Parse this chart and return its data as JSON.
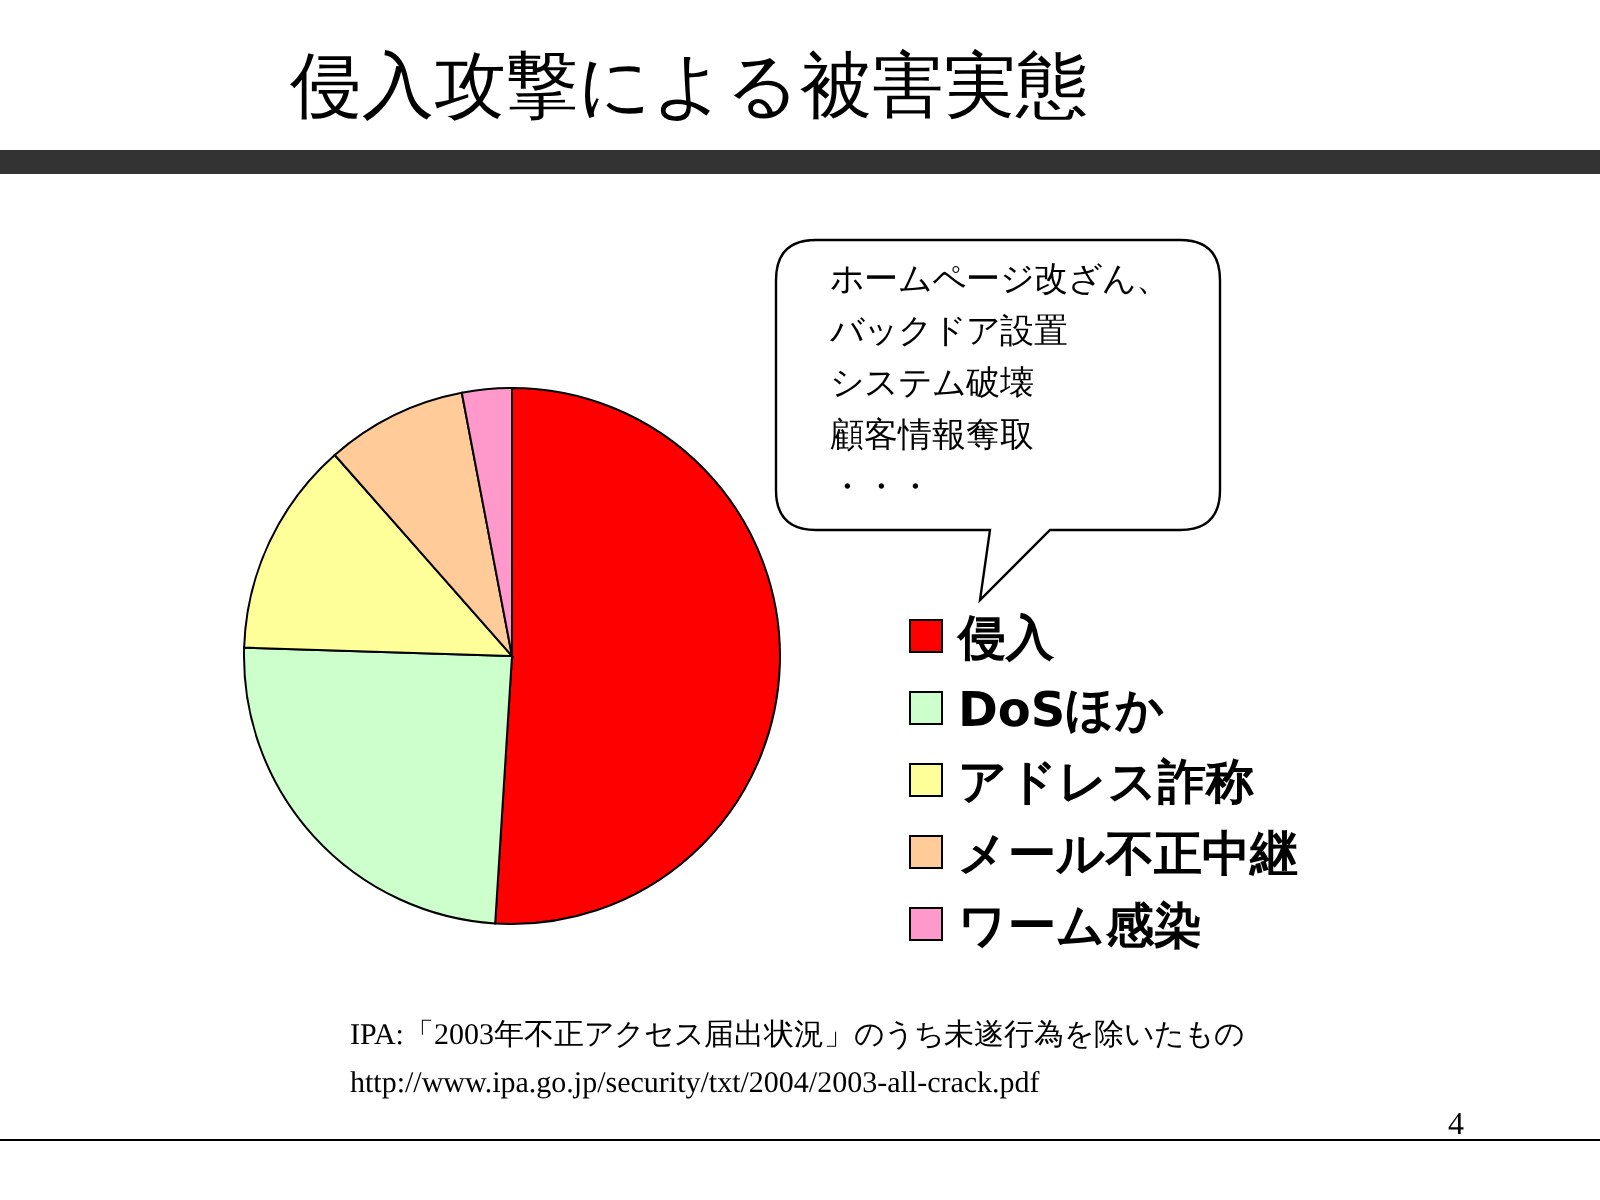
{
  "chart_data": {
    "type": "pie",
    "title": "侵入攻撃による被害実態",
    "categories": [
      "侵入",
      "DoSほか",
      "アドレス詐称",
      "メール不正中継",
      "ワーム感染"
    ],
    "values": [
      51,
      24.5,
      13,
      8.5,
      3
    ],
    "colors": [
      "#ff0000",
      "#ccffcc",
      "#ffff99",
      "#ffcc99",
      "#ff99cc"
    ],
    "legend": "right",
    "annotations": [
      "ホームページ改ざん、",
      "バックドア設置",
      "システム破壊",
      "顧客情報奪取",
      "・・・",
      "IPA:「2003年不正アクセス届出状況」のうち未遂行為を除いたもの",
      "http://www.ipa.go.jp/security/txt/2004/2003-all-crack.pdf",
      "4"
    ]
  }
}
